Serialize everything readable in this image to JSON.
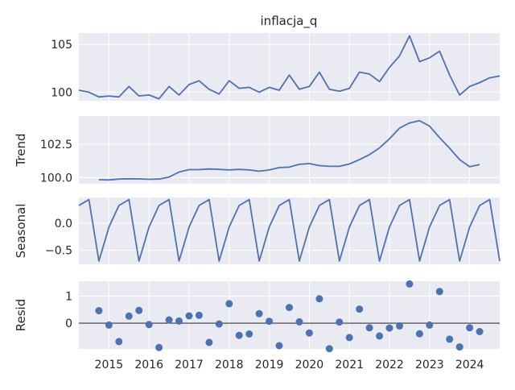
{
  "chart_data": {
    "type": "line",
    "title": "inflacja_q",
    "x": [
      "2014Q2",
      "2014Q3",
      "2014Q4",
      "2015Q1",
      "2015Q2",
      "2015Q3",
      "2015Q4",
      "2016Q1",
      "2016Q2",
      "2016Q3",
      "2016Q4",
      "2017Q1",
      "2017Q2",
      "2017Q3",
      "2017Q4",
      "2018Q1",
      "2018Q2",
      "2018Q3",
      "2018Q4",
      "2019Q1",
      "2019Q2",
      "2019Q3",
      "2019Q4",
      "2020Q1",
      "2020Q2",
      "2020Q3",
      "2020Q4",
      "2021Q1",
      "2021Q2",
      "2021Q3",
      "2021Q4",
      "2022Q1",
      "2022Q2",
      "2022Q3",
      "2022Q4",
      "2023Q1",
      "2023Q2",
      "2023Q3",
      "2023Q4",
      "2024Q1",
      "2024Q2",
      "2024Q3",
      "2024Q4"
    ],
    "x_tick_labels": [
      "2015",
      "2016",
      "2017",
      "2018",
      "2019",
      "2020",
      "2021",
      "2022",
      "2023",
      "2024"
    ],
    "xlim": [
      "2014Q2",
      "2024Q4"
    ],
    "grid": true,
    "panels": [
      {
        "ylabel": "",
        "yticks": [
          100,
          105
        ],
        "ytick_labels": [
          "100",
          "105"
        ],
        "ylim": [
          99.1,
          106.2
        ],
        "style": "line",
        "values": [
          100.2,
          100.0,
          99.5,
          99.6,
          99.5,
          100.6,
          99.6,
          99.7,
          99.3,
          100.6,
          99.7,
          100.8,
          101.2,
          100.3,
          99.8,
          101.2,
          100.4,
          100.5,
          100.0,
          100.5,
          100.2,
          101.8,
          100.3,
          100.6,
          102.1,
          100.3,
          100.1,
          100.4,
          102.1,
          101.9,
          101.1,
          102.6,
          103.8,
          105.9,
          103.2,
          103.6,
          104.3,
          101.8,
          99.7,
          100.6,
          101.0,
          101.5,
          101.7
        ]
      },
      {
        "ylabel": "Trend",
        "yticks": [
          100.0,
          102.5
        ],
        "ytick_labels": [
          "100.0",
          "102.5"
        ],
        "ylim": [
          99.55,
          104.6
        ],
        "style": "line",
        "values": [
          null,
          null,
          99.85,
          99.83,
          99.9,
          99.92,
          99.91,
          99.88,
          99.9,
          100.05,
          100.42,
          100.6,
          100.6,
          100.65,
          100.62,
          100.58,
          100.62,
          100.58,
          100.48,
          100.58,
          100.75,
          100.79,
          101.0,
          101.05,
          100.9,
          100.85,
          100.85,
          101.02,
          101.35,
          101.72,
          102.22,
          102.9,
          103.7,
          104.08,
          104.25,
          103.85,
          102.98,
          102.2,
          101.35,
          100.82,
          100.98,
          null,
          null
        ]
      },
      {
        "ylabel": "Seasonal",
        "yticks": [
          0.0,
          -0.5
        ],
        "ytick_labels": [
          "0.0",
          "−0.5"
        ],
        "ylim": [
          -0.76,
          0.48
        ],
        "style": "line",
        "values": [
          0.33,
          0.44,
          -0.7,
          -0.07,
          0.33,
          0.44,
          -0.7,
          -0.07,
          0.33,
          0.44,
          -0.7,
          -0.07,
          0.33,
          0.44,
          -0.7,
          -0.07,
          0.33,
          0.44,
          -0.7,
          -0.07,
          0.33,
          0.44,
          -0.7,
          -0.07,
          0.33,
          0.44,
          -0.7,
          -0.07,
          0.33,
          0.44,
          -0.7,
          -0.07,
          0.33,
          0.44,
          -0.7,
          -0.07,
          0.33,
          0.44,
          -0.7,
          -0.07,
          0.33,
          0.44,
          -0.7
        ]
      },
      {
        "ylabel": "Resid",
        "yticks": [
          0,
          1
        ],
        "ytick_labels": [
          "0",
          "1"
        ],
        "ylim": [
          -0.95,
          1.55
        ],
        "style": "scatter",
        "baseline": 0,
        "values": [
          null,
          null,
          0.46,
          -0.07,
          -0.68,
          0.26,
          0.47,
          -0.05,
          -0.9,
          0.12,
          0.08,
          0.27,
          0.29,
          -0.71,
          -0.03,
          0.72,
          -0.45,
          -0.4,
          0.35,
          0.07,
          -0.83,
          0.58,
          0.05,
          -0.36,
          0.9,
          -0.94,
          0.04,
          -0.53,
          0.52,
          -0.17,
          -0.47,
          -0.18,
          -0.1,
          1.45,
          -0.39,
          -0.07,
          1.17,
          -0.59,
          -0.88,
          -0.17,
          -0.31,
          null,
          null
        ]
      }
    ],
    "colors": {
      "line": "#4c72b0",
      "panel_bg": "#eaeaf2",
      "grid": "#ffffff",
      "baseline": "#000000"
    }
  }
}
